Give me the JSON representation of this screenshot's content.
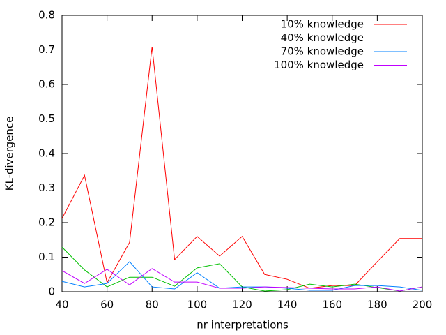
{
  "chart_data": {
    "type": "line",
    "x_label": "nr interpretations",
    "y_label": "KL-divergence",
    "x": [
      40,
      50,
      60,
      70,
      80,
      90,
      100,
      110,
      120,
      130,
      140,
      150,
      160,
      170,
      180,
      190,
      200
    ],
    "series": [
      {
        "name": "10% knowledge",
        "color": "#ff0000",
        "values": [
          0.212,
          0.337,
          0.026,
          0.143,
          0.709,
          0.093,
          0.16,
          0.103,
          0.16,
          0.05,
          0.036,
          0.01,
          0.018,
          0.018,
          0.087,
          0.154,
          0.154
        ]
      },
      {
        "name": "40% knowledge",
        "color": "#00c000",
        "values": [
          0.129,
          0.063,
          0.014,
          0.042,
          0.042,
          0.016,
          0.069,
          0.081,
          0.014,
          0.002,
          0.006,
          0.022,
          0.014,
          0.022,
          0.012,
          0.002,
          0.014
        ]
      },
      {
        "name": "70% knowledge",
        "color": "#0080ff",
        "values": [
          0.03,
          0.014,
          0.024,
          0.087,
          0.014,
          0.008,
          0.055,
          0.01,
          0.014,
          0.014,
          0.01,
          0.004,
          0.004,
          0.018,
          0.018,
          0.014,
          0.004
        ]
      },
      {
        "name": "100% knowledge",
        "color": "#c000ff",
        "values": [
          0.061,
          0.024,
          0.065,
          0.02,
          0.067,
          0.028,
          0.028,
          0.01,
          0.01,
          0.014,
          0.012,
          0.01,
          0.008,
          0.008,
          0.014,
          0.002,
          0.014
        ]
      }
    ],
    "xlim": [
      40,
      200
    ],
    "xticks": [
      40,
      60,
      80,
      100,
      120,
      140,
      160,
      180,
      200
    ],
    "ylim": [
      0,
      0.8
    ],
    "yticks": [
      0,
      0.1,
      0.2,
      0.3,
      0.4,
      0.5,
      0.6,
      0.7,
      0.8
    ],
    "legend": "top-right"
  }
}
